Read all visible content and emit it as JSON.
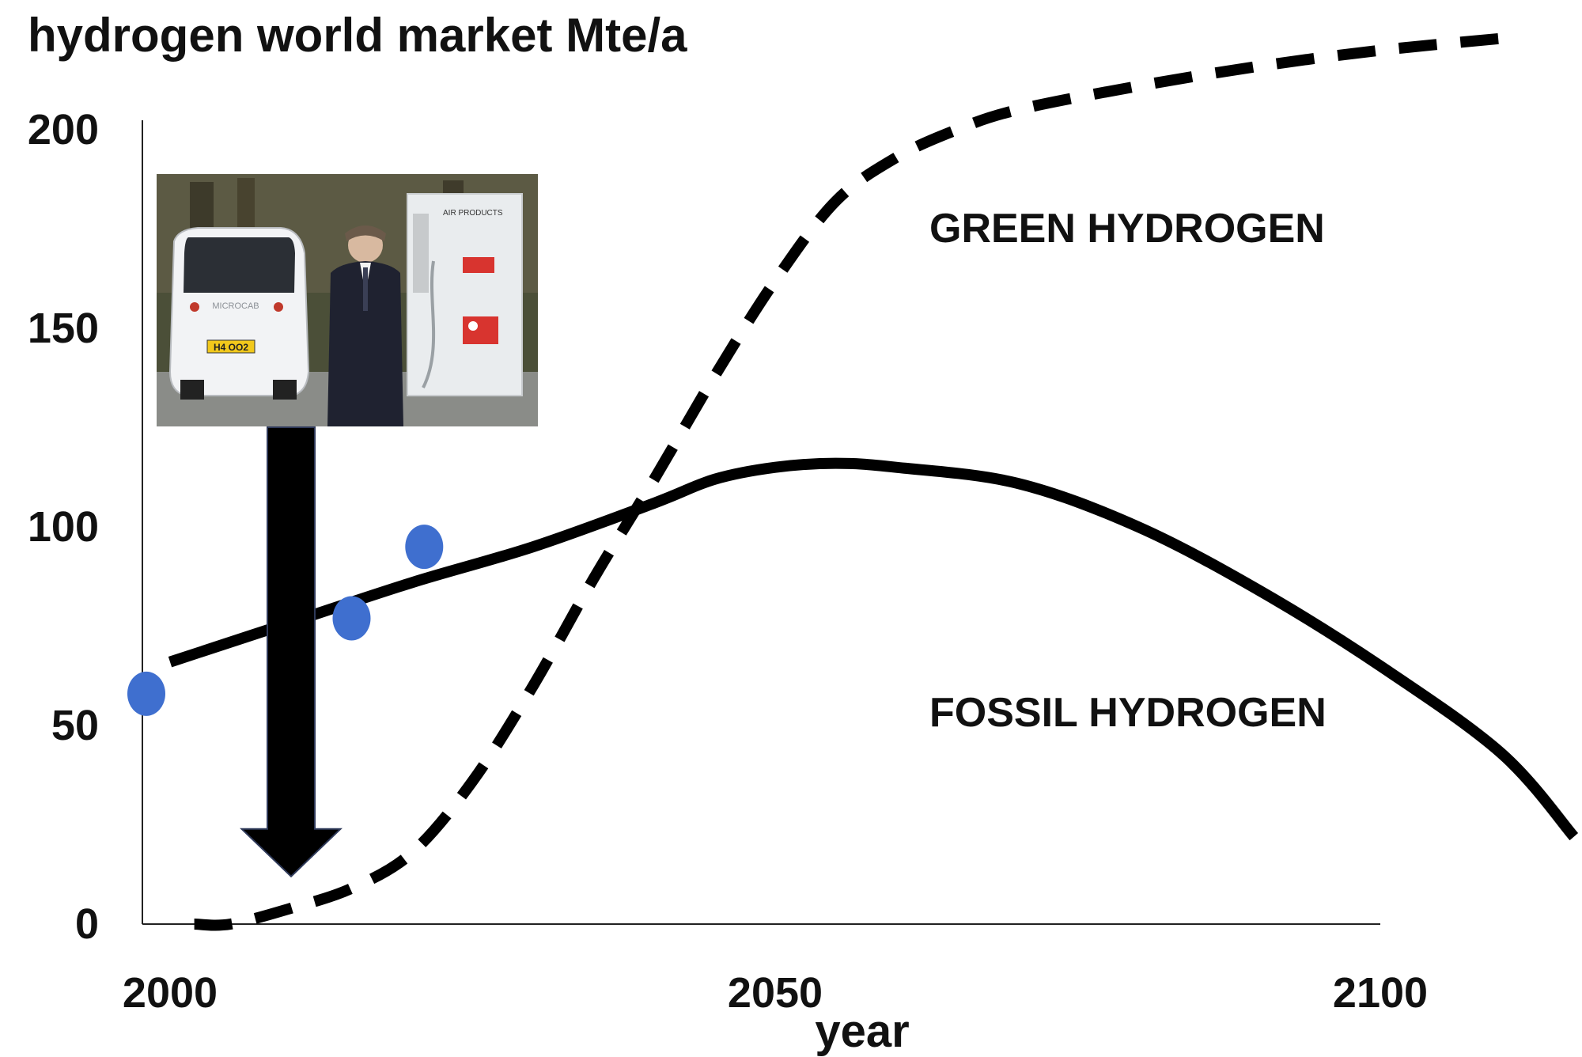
{
  "colors": {
    "line": "#000000",
    "points": "#3f6fcf",
    "arrow": "#000000",
    "photo_bg": "#4a4f3a"
  },
  "chart_data": {
    "type": "line",
    "title": "hydrogen world market Mte/a",
    "xlabel": "year",
    "ylabel": "",
    "xlim": [
      2000,
      2100
    ],
    "ylim": [
      0,
      210
    ],
    "x_ticks": [
      2000,
      2050,
      2100
    ],
    "y_ticks": [
      0,
      50,
      100,
      150,
      200
    ],
    "grid": false,
    "series": [
      {
        "name": "fossil hydrogen",
        "style": "solid",
        "x": [
          2000,
          2010,
          2020,
          2030,
          2040,
          2045,
          2050,
          2055,
          2060,
          2070,
          2080,
          2090,
          2100,
          2110,
          2116
        ],
        "y": [
          66,
          76,
          86,
          95,
          106,
          112,
          115,
          116,
          115,
          111,
          100,
          84,
          65,
          43,
          22
        ]
      },
      {
        "name": "green hydrogen",
        "style": "dashed",
        "x": [
          2002,
          2005,
          2010,
          2015,
          2020,
          2025,
          2030,
          2035,
          2040,
          2045,
          2050,
          2055,
          2060,
          2065,
          2070,
          2080,
          2090,
          2100,
          2110
        ],
        "y": [
          0,
          0,
          4,
          9,
          18,
          36,
          60,
          87,
          112,
          138,
          162,
          182,
          193,
          200,
          205,
          211,
          216,
          220,
          223
        ]
      }
    ],
    "points": {
      "name": "measured",
      "x": [
        2000,
        2015,
        2021
      ],
      "y": [
        58,
        77,
        95
      ]
    },
    "annotations": [
      {
        "text": "GREEN HYDROGEN",
        "x": 2080,
        "y": 182
      },
      {
        "text": "FOSSIL HYDROGEN",
        "x": 2080,
        "y": 56
      }
    ],
    "arrow": {
      "x": 2010,
      "y_from": 125,
      "y_to": 12
    }
  },
  "photo": {
    "description_icon": "hydrogen-fuel-cell-car-photo-icon",
    "car_plate": "H4 OO2",
    "car_brand": "MICROCAB",
    "pump_brand": "AIR PRODUCTS"
  }
}
